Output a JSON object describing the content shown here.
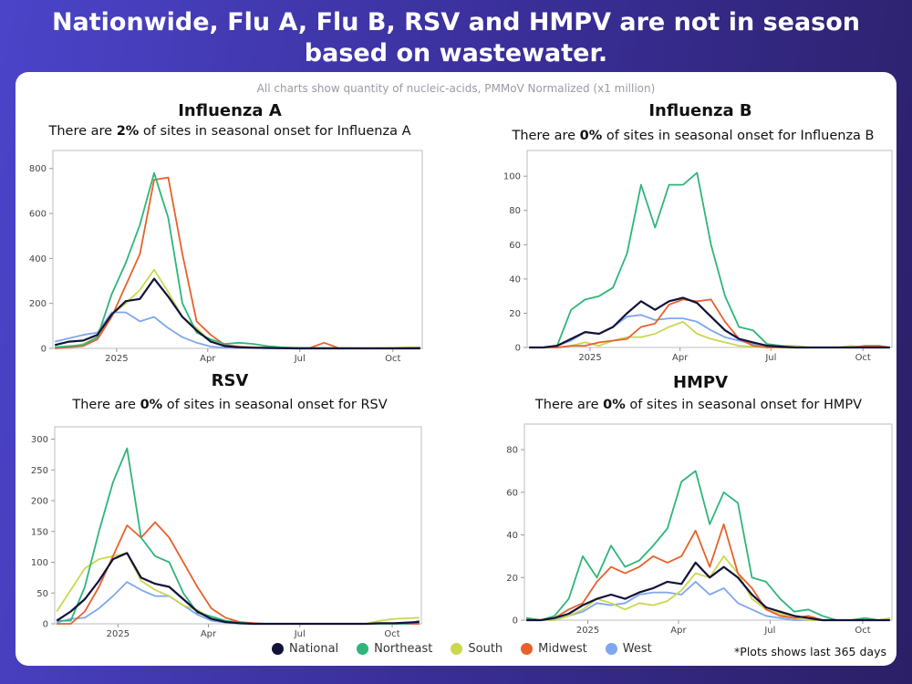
{
  "headline": [
    "Nationwide, Flu A, Flu B, RSV and HMPV are not in season",
    "based on wastewater."
  ],
  "note": "All charts show quantity of nucleic-acids, PMMoV Normalized (x1 million)",
  "footnote": "*Plots shows last 365 days",
  "legend": [
    {
      "name": "National",
      "color": "#12123a"
    },
    {
      "name": "Northeast",
      "color": "#2fb57a"
    },
    {
      "name": "South",
      "color": "#c9d84f"
    },
    {
      "name": "Midwest",
      "color": "#e8612c"
    },
    {
      "name": "West",
      "color": "#7fa6ee"
    }
  ],
  "chart_data": [
    {
      "type": "line",
      "title": "Influenza A",
      "subtitle": {
        "pre": "There are ",
        "value": "2%",
        "post": " of sites in seasonal onset for Influenza A"
      },
      "xlim": [
        "2024-10-30",
        "2025-10-30"
      ],
      "ylim": [
        0,
        880
      ],
      "yticks": [
        0,
        200,
        400,
        600,
        800
      ],
      "xticks": [
        {
          "date": "2025-01-01",
          "label": "2025"
        },
        {
          "date": "2025-04-01",
          "label": "Apr"
        },
        {
          "date": "2025-07-01",
          "label": "Jul"
        },
        {
          "date": "2025-10-01",
          "label": "Oct"
        }
      ],
      "x": [
        "2024-11-01",
        "2024-11-15",
        "2024-11-29",
        "2024-12-13",
        "2024-12-27",
        "2025-01-10",
        "2025-01-24",
        "2025-02-07",
        "2025-02-21",
        "2025-03-07",
        "2025-03-21",
        "2025-04-04",
        "2025-04-18",
        "2025-05-02",
        "2025-05-16",
        "2025-05-30",
        "2025-06-13",
        "2025-06-27",
        "2025-07-11",
        "2025-07-25",
        "2025-08-08",
        "2025-08-22",
        "2025-09-05",
        "2025-09-19",
        "2025-10-03",
        "2025-10-17",
        "2025-10-28"
      ],
      "series": [
        {
          "name": "National",
          "values": [
            15,
            30,
            35,
            60,
            150,
            210,
            220,
            310,
            230,
            140,
            80,
            30,
            10,
            5,
            3,
            2,
            1,
            0,
            0,
            0,
            0,
            0,
            0,
            0,
            0,
            0,
            0
          ]
        },
        {
          "name": "Northeast",
          "values": [
            5,
            10,
            15,
            50,
            240,
            380,
            550,
            780,
            580,
            200,
            70,
            40,
            20,
            25,
            20,
            10,
            5,
            3,
            2,
            2,
            1,
            1,
            0,
            0,
            1,
            1,
            2
          ]
        },
        {
          "name": "South",
          "values": [
            0,
            5,
            20,
            50,
            150,
            200,
            260,
            350,
            250,
            140,
            90,
            30,
            10,
            5,
            2,
            2,
            1,
            1,
            1,
            1,
            1,
            1,
            1,
            2,
            3,
            5,
            5
          ]
        },
        {
          "name": "Midwest",
          "values": [
            0,
            5,
            10,
            40,
            140,
            280,
            420,
            750,
            760,
            420,
            120,
            60,
            15,
            8,
            5,
            3,
            2,
            2,
            2,
            25,
            2,
            1,
            1,
            1,
            1,
            2,
            3
          ]
        },
        {
          "name": "West",
          "values": [
            30,
            45,
            60,
            70,
            160,
            160,
            120,
            140,
            90,
            50,
            25,
            8,
            3,
            2,
            2,
            1,
            1,
            1,
            1,
            1,
            1,
            1,
            1,
            1,
            1,
            1,
            1
          ]
        }
      ]
    },
    {
      "type": "line",
      "title": "Influenza B",
      "subtitle": {
        "pre": "There are ",
        "value": "0%",
        "post": " of sites in seasonal onset for Influenza B"
      },
      "xlim": [
        "2024-10-30",
        "2025-10-30"
      ],
      "ylim": [
        0,
        115
      ],
      "yticks": [
        0,
        20,
        40,
        60,
        80,
        100
      ],
      "xticks": [
        {
          "date": "2025-01-01",
          "label": "2025"
        },
        {
          "date": "2025-04-01",
          "label": "Apr"
        },
        {
          "date": "2025-07-01",
          "label": "Jul"
        },
        {
          "date": "2025-10-01",
          "label": "Oct"
        }
      ],
      "x": [
        "2024-11-01",
        "2024-11-15",
        "2024-11-29",
        "2024-12-13",
        "2024-12-27",
        "2025-01-10",
        "2025-01-24",
        "2025-02-07",
        "2025-02-21",
        "2025-03-07",
        "2025-03-21",
        "2025-04-04",
        "2025-04-18",
        "2025-05-02",
        "2025-05-16",
        "2025-05-30",
        "2025-06-13",
        "2025-06-27",
        "2025-07-11",
        "2025-07-25",
        "2025-08-08",
        "2025-08-22",
        "2025-09-05",
        "2025-09-19",
        "2025-10-03",
        "2025-10-17",
        "2025-10-28"
      ],
      "series": [
        {
          "name": "National",
          "values": [
            0,
            0,
            1,
            5,
            9,
            8,
            12,
            20,
            27,
            22,
            27,
            29,
            26,
            18,
            10,
            5,
            3,
            1,
            0.5,
            0,
            0,
            0,
            0,
            0,
            0,
            0,
            0
          ]
        },
        {
          "name": "Northeast",
          "values": [
            0,
            0,
            1,
            22,
            28,
            30,
            35,
            55,
            95,
            70,
            95,
            95,
            102,
            60,
            30,
            12,
            10,
            2,
            1,
            0,
            0,
            0,
            0,
            0,
            0,
            0,
            0
          ]
        },
        {
          "name": "South",
          "values": [
            0,
            0,
            0,
            1,
            3,
            1,
            4,
            6,
            6,
            8,
            12,
            15,
            8,
            5,
            3,
            1,
            0.5,
            0,
            1,
            1,
            0,
            0,
            0,
            1,
            0,
            0,
            0
          ]
        },
        {
          "name": "Midwest",
          "values": [
            0,
            0,
            0,
            1,
            1,
            3,
            4,
            5,
            12,
            14,
            25,
            28,
            27,
            28,
            15,
            5,
            1,
            0,
            0,
            0,
            0,
            0,
            0,
            0,
            1,
            1,
            0
          ]
        },
        {
          "name": "West",
          "values": [
            0,
            0,
            1,
            4,
            9,
            8,
            12,
            18,
            19,
            16,
            17,
            17,
            15,
            10,
            6,
            4,
            2,
            1,
            0,
            0,
            0,
            0,
            0,
            0,
            0,
            0,
            0
          ]
        }
      ]
    },
    {
      "type": "line",
      "title": "RSV",
      "subtitle": {
        "pre": "There are ",
        "value": "0%",
        "post": " of sites in seasonal onset for RSV"
      },
      "xlim": [
        "2024-10-30",
        "2025-10-30"
      ],
      "ylim": [
        0,
        320
      ],
      "yticks": [
        0,
        50,
        100,
        150,
        200,
        250,
        300
      ],
      "xticks": [
        {
          "date": "2025-01-01",
          "label": "2025"
        },
        {
          "date": "2025-04-01",
          "label": "Apr"
        },
        {
          "date": "2025-07-01",
          "label": "Jul"
        },
        {
          "date": "2025-10-01",
          "label": "Oct"
        }
      ],
      "x": [
        "2024-11-01",
        "2024-11-15",
        "2024-11-29",
        "2024-12-13",
        "2024-12-27",
        "2025-01-10",
        "2025-01-24",
        "2025-02-07",
        "2025-02-21",
        "2025-03-07",
        "2025-03-21",
        "2025-04-04",
        "2025-04-18",
        "2025-05-02",
        "2025-05-16",
        "2025-05-30",
        "2025-06-13",
        "2025-06-27",
        "2025-07-11",
        "2025-07-25",
        "2025-08-08",
        "2025-08-22",
        "2025-09-05",
        "2025-09-19",
        "2025-10-03",
        "2025-10-17",
        "2025-10-28"
      ],
      "series": [
        {
          "name": "National",
          "values": [
            5,
            20,
            40,
            70,
            105,
            115,
            75,
            65,
            60,
            40,
            20,
            8,
            3,
            1,
            0,
            0,
            0,
            0,
            0,
            0,
            0,
            0,
            0,
            1,
            1,
            2,
            3
          ]
        },
        {
          "name": "Northeast",
          "values": [
            5,
            5,
            60,
            150,
            230,
            285,
            140,
            110,
            100,
            50,
            18,
            12,
            5,
            2,
            0,
            0,
            0,
            0,
            0,
            0,
            0,
            0,
            0,
            0,
            0,
            0,
            5
          ]
        },
        {
          "name": "South",
          "values": [
            20,
            55,
            90,
            105,
            110,
            115,
            70,
            55,
            45,
            30,
            22,
            10,
            3,
            1,
            0,
            0,
            0,
            0,
            0,
            0,
            0,
            0,
            0,
            5,
            8,
            9,
            10
          ]
        },
        {
          "name": "Midwest",
          "values": [
            0,
            0,
            20,
            60,
            110,
            160,
            140,
            165,
            140,
            100,
            60,
            25,
            10,
            3,
            1,
            0,
            0,
            0,
            0,
            0,
            0,
            0,
            0,
            0,
            0,
            0,
            0
          ]
        },
        {
          "name": "West",
          "values": [
            2,
            8,
            10,
            25,
            45,
            68,
            55,
            45,
            45,
            30,
            15,
            5,
            2,
            0,
            0,
            0,
            0,
            0,
            0,
            0,
            0,
            0,
            0,
            0,
            0,
            0,
            0
          ]
        }
      ]
    },
    {
      "type": "line",
      "title": "HMPV",
      "subtitle": {
        "pre": "There are ",
        "value": "0%",
        "post": " of sites in seasonal onset for HMPV"
      },
      "xlim": [
        "2024-10-30",
        "2025-10-30"
      ],
      "ylim": [
        0,
        92
      ],
      "yticks": [
        0,
        20,
        40,
        60,
        80
      ],
      "xticks": [
        {
          "date": "2025-01-01",
          "label": "2025"
        },
        {
          "date": "2025-04-01",
          "label": "Apr"
        },
        {
          "date": "2025-07-01",
          "label": "Jul"
        },
        {
          "date": "2025-10-01",
          "label": "Oct"
        }
      ],
      "x": [
        "2024-11-01",
        "2024-11-15",
        "2024-11-29",
        "2024-12-13",
        "2024-12-27",
        "2025-01-10",
        "2025-01-24",
        "2025-02-07",
        "2025-02-21",
        "2025-03-07",
        "2025-03-21",
        "2025-04-04",
        "2025-04-18",
        "2025-05-02",
        "2025-05-16",
        "2025-05-30",
        "2025-06-13",
        "2025-06-27",
        "2025-07-11",
        "2025-07-25",
        "2025-08-08",
        "2025-08-22",
        "2025-09-05",
        "2025-09-19",
        "2025-10-03",
        "2025-10-17",
        "2025-10-28"
      ],
      "series": [
        {
          "name": "National",
          "values": [
            0,
            0,
            1,
            3,
            7,
            10,
            12,
            10,
            13,
            15,
            18,
            17,
            27,
            20,
            25,
            20,
            12,
            6,
            4,
            2,
            1,
            0,
            0,
            0,
            0,
            0,
            0
          ]
        },
        {
          "name": "Northeast",
          "values": [
            1,
            0,
            2,
            10,
            30,
            20,
            35,
            25,
            28,
            35,
            43,
            65,
            70,
            45,
            60,
            55,
            20,
            18,
            10,
            4,
            5,
            2,
            0,
            0,
            1,
            0,
            0
          ]
        },
        {
          "name": "South",
          "values": [
            0,
            0,
            0,
            2,
            5,
            10,
            8,
            5,
            8,
            7,
            9,
            14,
            22,
            20,
            30,
            22,
            10,
            5,
            3,
            1,
            0,
            0,
            0,
            0,
            0,
            0,
            1
          ]
        },
        {
          "name": "Midwest",
          "values": [
            1,
            0,
            1,
            5,
            8,
            18,
            25,
            22,
            25,
            30,
            27,
            30,
            42,
            25,
            45,
            22,
            15,
            5,
            2,
            1,
            2,
            0,
            0,
            0,
            0,
            0,
            0
          ]
        },
        {
          "name": "West",
          "values": [
            0,
            0,
            0,
            2,
            4,
            8,
            7,
            8,
            12,
            13,
            13,
            12,
            18,
            12,
            15,
            8,
            5,
            2,
            1,
            0,
            0,
            0,
            0,
            0,
            0,
            0,
            0
          ]
        }
      ]
    }
  ]
}
